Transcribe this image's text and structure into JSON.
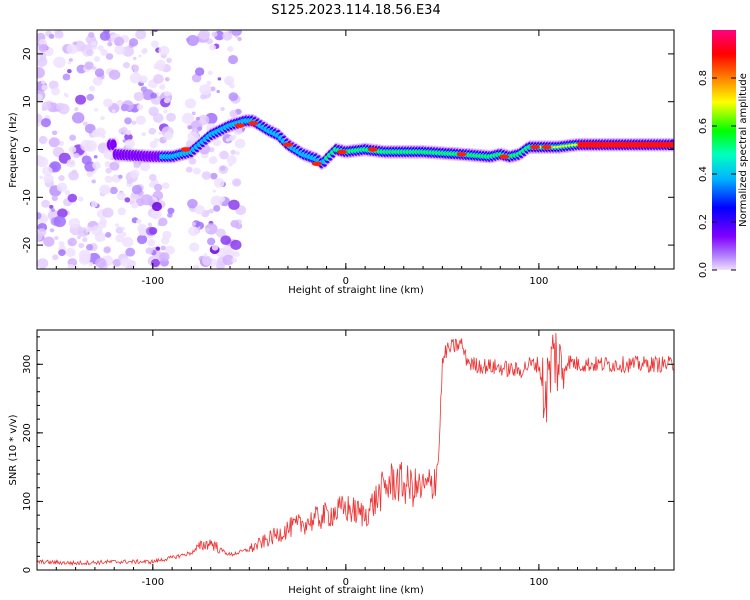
{
  "figure": {
    "title": "S125.2023.114.18.56.E34"
  },
  "chart_data": [
    {
      "type": "heatmap",
      "title": "",
      "xlabel": "Height of straight line (km)",
      "ylabel": "Frequency (Hz)",
      "xlim": [
        -160,
        170
      ],
      "ylim": [
        -25,
        25
      ],
      "xticks": [
        -100,
        0,
        100
      ],
      "yticks": [
        -20,
        -10,
        0,
        10,
        20
      ],
      "colorbar": {
        "label": "Normalized spectral amplitude",
        "range": [
          0,
          1
        ],
        "ticks": [
          0.0,
          0.2,
          0.4,
          0.6,
          0.8
        ],
        "colormap": [
          "#f0e0ff",
          "#8000ff",
          "#0000ff",
          "#00c8ff",
          "#00ff00",
          "#ffff00",
          "#ff8000",
          "#ff0000",
          "#ff0080"
        ]
      },
      "trace": {
        "description_points_x": [
          -120,
          -100,
          -90,
          -80,
          -70,
          -60,
          -52,
          -48,
          -40,
          -35,
          -30,
          -22,
          -15,
          -12,
          -10,
          -5,
          0,
          10,
          20,
          40,
          60,
          75,
          80,
          85,
          90,
          95,
          100,
          110,
          120,
          140,
          170
        ],
        "description_points_y": [
          -1,
          -1.5,
          -1.5,
          -0.5,
          3,
          5,
          6,
          6,
          4,
          3,
          1,
          -1,
          -2,
          -3,
          -2,
          0,
          -0.5,
          0,
          -0.5,
          -0.5,
          -1,
          -1.5,
          -1,
          -1.5,
          -1,
          0.5,
          0.5,
          0.5,
          1,
          1,
          1
        ],
        "peak_amplitude": 1.0
      },
      "noise_region_x": [
        -160,
        -60
      ]
    },
    {
      "type": "line",
      "title": "",
      "xlabel": "Height of straight line (km)",
      "ylabel": "SNR (10 * v/v)",
      "xlim": [
        -160,
        170
      ],
      "ylim": [
        0,
        350
      ],
      "xticks": [
        -100,
        0,
        100
      ],
      "yticks": [
        0,
        100,
        200,
        300
      ],
      "series": [
        {
          "color": "#ee3333",
          "x": [
            -160,
            -140,
            -120,
            -100,
            -90,
            -80,
            -75,
            -70,
            -65,
            -60,
            -50,
            -40,
            -30,
            -20,
            -10,
            0,
            5,
            10,
            15,
            20,
            25,
            30,
            35,
            40,
            45,
            48,
            50,
            52,
            55,
            60,
            62,
            65,
            70,
            80,
            90,
            95,
            100,
            103,
            105,
            108,
            110,
            112,
            115,
            120,
            130,
            140,
            150,
            160,
            170
          ],
          "y": [
            12,
            10,
            12,
            12,
            18,
            25,
            35,
            40,
            30,
            22,
            30,
            45,
            60,
            70,
            80,
            90,
            85,
            80,
            100,
            120,
            130,
            125,
            120,
            118,
            125,
            160,
            300,
            320,
            325,
            330,
            310,
            300,
            298,
            295,
            290,
            300,
            300,
            250,
            280,
            320,
            300,
            290,
            305,
            300,
            300,
            300,
            300,
            300,
            300
          ]
        }
      ]
    }
  ]
}
